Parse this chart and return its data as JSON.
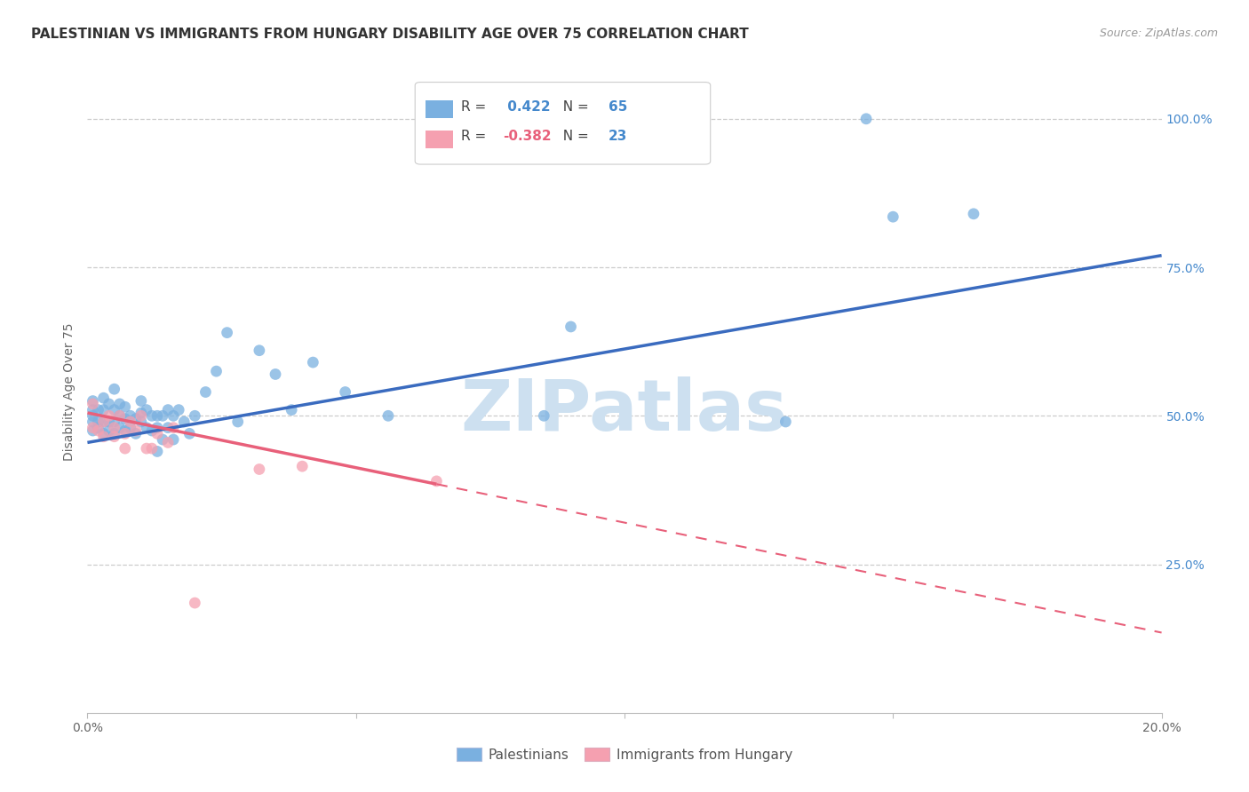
{
  "title": "PALESTINIAN VS IMMIGRANTS FROM HUNGARY DISABILITY AGE OVER 75 CORRELATION CHART",
  "source": "Source: ZipAtlas.com",
  "ylabel": "Disability Age Over 75",
  "xlim": [
    0.0,
    0.2
  ],
  "ylim": [
    0.0,
    1.08
  ],
  "xtick_vals": [
    0.0,
    0.05,
    0.1,
    0.15,
    0.2
  ],
  "xtick_labels": [
    "0.0%",
    "",
    "",
    "",
    "20.0%"
  ],
  "ytick_positions": [
    0.25,
    0.5,
    0.75,
    1.0
  ],
  "ytick_labels": [
    "25.0%",
    "50.0%",
    "75.0%",
    "100.0%"
  ],
  "background_color": "#ffffff",
  "grid_color": "#cccccc",
  "blue_R": 0.422,
  "blue_N": 65,
  "pink_R": -0.382,
  "pink_N": 23,
  "blue_color": "#7ab0e0",
  "pink_color": "#f5a0b0",
  "blue_line_color": "#3a6bbf",
  "pink_line_color": "#e8607a",
  "watermark_text": "ZIPatlas",
  "watermark_color": "#cde0f0",
  "blue_line_x0": 0.0,
  "blue_line_y0": 0.455,
  "blue_line_x1": 0.2,
  "blue_line_y1": 0.77,
  "pink_line_x0": 0.0,
  "pink_line_y0": 0.505,
  "pink_line_x1_solid": 0.065,
  "pink_line_y1_solid": 0.385,
  "pink_line_x1_dash": 0.2,
  "pink_line_y1_dash": 0.135,
  "blue_scatter_x": [
    0.001,
    0.001,
    0.001,
    0.001,
    0.001,
    0.002,
    0.002,
    0.002,
    0.003,
    0.003,
    0.003,
    0.003,
    0.004,
    0.004,
    0.004,
    0.005,
    0.005,
    0.005,
    0.005,
    0.006,
    0.006,
    0.006,
    0.007,
    0.007,
    0.007,
    0.008,
    0.008,
    0.009,
    0.009,
    0.01,
    0.01,
    0.01,
    0.011,
    0.011,
    0.012,
    0.012,
    0.013,
    0.013,
    0.013,
    0.014,
    0.014,
    0.015,
    0.015,
    0.016,
    0.016,
    0.017,
    0.018,
    0.019,
    0.02,
    0.022,
    0.024,
    0.026,
    0.028,
    0.032,
    0.035,
    0.038,
    0.042,
    0.048,
    0.056,
    0.085,
    0.09,
    0.13,
    0.15,
    0.165,
    0.145
  ],
  "blue_scatter_y": [
    0.475,
    0.49,
    0.5,
    0.51,
    0.525,
    0.48,
    0.49,
    0.51,
    0.47,
    0.49,
    0.51,
    0.53,
    0.475,
    0.49,
    0.52,
    0.47,
    0.49,
    0.51,
    0.545,
    0.48,
    0.5,
    0.52,
    0.475,
    0.495,
    0.515,
    0.48,
    0.5,
    0.47,
    0.495,
    0.49,
    0.505,
    0.525,
    0.48,
    0.51,
    0.475,
    0.5,
    0.48,
    0.5,
    0.44,
    0.5,
    0.46,
    0.51,
    0.48,
    0.5,
    0.46,
    0.51,
    0.49,
    0.47,
    0.5,
    0.54,
    0.575,
    0.64,
    0.49,
    0.61,
    0.57,
    0.51,
    0.59,
    0.54,
    0.5,
    0.5,
    0.65,
    0.49,
    0.835,
    0.84,
    1.0
  ],
  "pink_scatter_x": [
    0.001,
    0.001,
    0.002,
    0.003,
    0.003,
    0.004,
    0.005,
    0.005,
    0.006,
    0.007,
    0.007,
    0.008,
    0.009,
    0.01,
    0.011,
    0.012,
    0.013,
    0.015,
    0.016,
    0.02,
    0.032,
    0.04,
    0.065
  ],
  "pink_scatter_y": [
    0.52,
    0.48,
    0.475,
    0.49,
    0.465,
    0.5,
    0.465,
    0.48,
    0.5,
    0.445,
    0.47,
    0.49,
    0.475,
    0.5,
    0.445,
    0.445,
    0.47,
    0.455,
    0.48,
    0.185,
    0.41,
    0.415,
    0.39
  ],
  "legend_blue_label": "Palestinians",
  "legend_pink_label": "Immigrants from Hungary",
  "title_fontsize": 11,
  "source_fontsize": 9,
  "axis_label_fontsize": 10,
  "tick_fontsize": 10,
  "legend_fontsize": 11,
  "watermark_fontsize": 58
}
